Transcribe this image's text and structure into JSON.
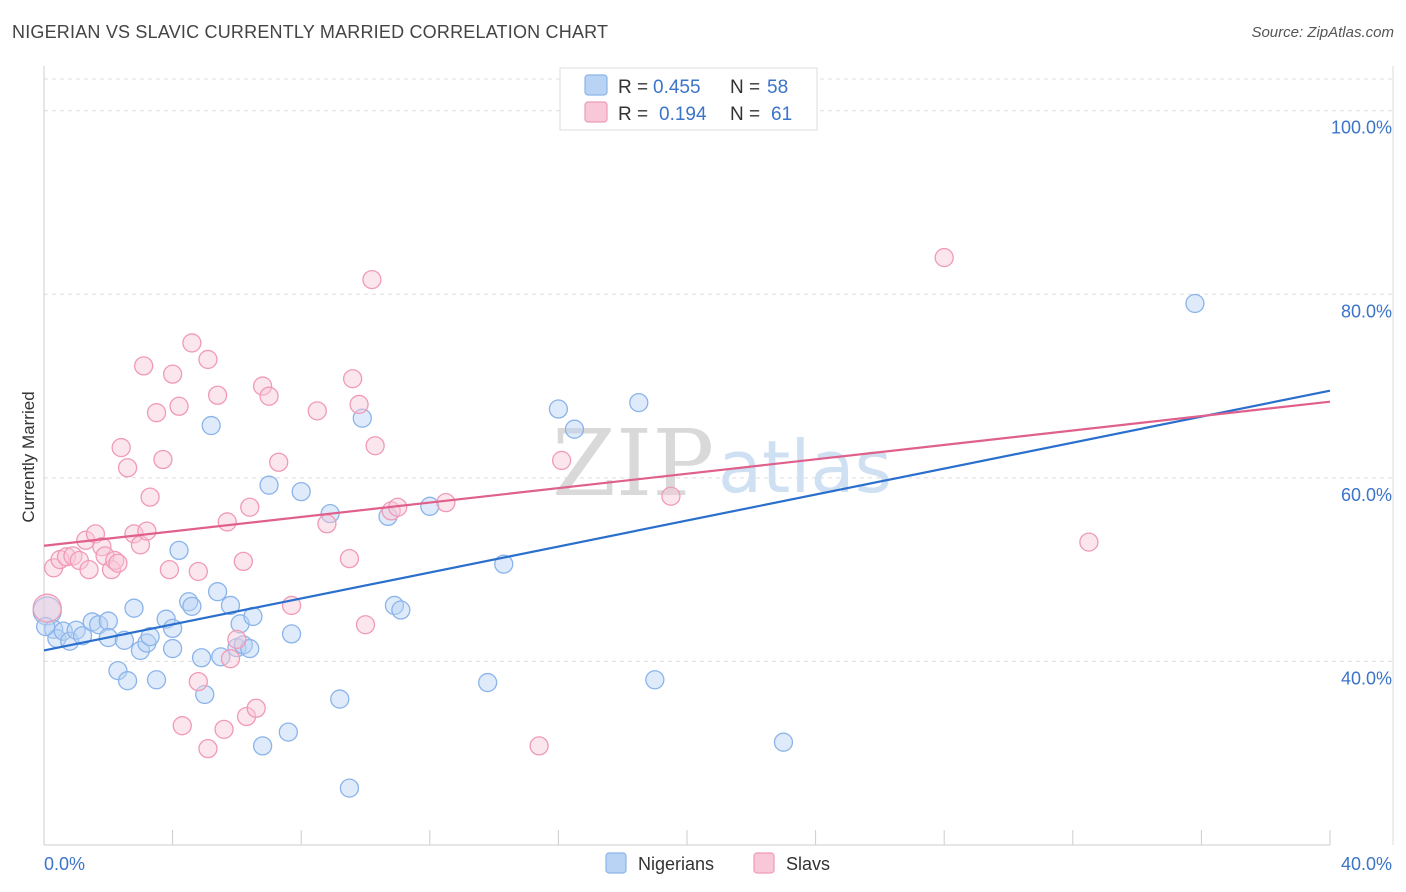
{
  "chart_data": {
    "type": "scatter",
    "title": "NIGERIAN VS SLAVIC CURRENTLY MARRIED CORRELATION CHART",
    "source": "Source: ZipAtlas.com",
    "ylabel": "Currently Married",
    "xlabel": "",
    "xlim": [
      0,
      40
    ],
    "ylim": [
      20,
      104
    ],
    "x_tick_labels": [
      "0.0%",
      "40.0%"
    ],
    "y_ticks": [
      40,
      60,
      80,
      100
    ],
    "y_tick_labels": [
      "40.0%",
      "60.0%",
      "80.0%",
      "100.0%"
    ],
    "watermark": {
      "part1": "ZIP",
      "part2": "atlas"
    },
    "legend": {
      "r_label": "R =",
      "n_label": "N =",
      "entries": [
        {
          "name": "Nigerians",
          "r": "0.455",
          "n": "58",
          "color": "#8ab4ea",
          "fill": "#b9d3f5"
        },
        {
          "name": "Slavs",
          "r": "0.194",
          "n": "61",
          "color": "#f09ab6",
          "fill": "#f8c8d8"
        }
      ]
    },
    "series": [
      {
        "name": "Nigerians",
        "color": "#8ab4ea",
        "line_color": "#2a6fcc",
        "trend": {
          "x0": 0,
          "y0": 41.2,
          "x1": 40,
          "y1": 69.5
        },
        "points": [
          [
            0.1,
            45.5
          ],
          [
            0.3,
            43.5
          ],
          [
            0.4,
            42.5
          ],
          [
            0.6,
            43.3
          ],
          [
            0.8,
            42.2
          ],
          [
            1.0,
            43.4
          ],
          [
            1.2,
            42.8
          ],
          [
            1.5,
            44.3
          ],
          [
            1.7,
            44.0
          ],
          [
            2.0,
            44.4
          ],
          [
            2.0,
            42.6
          ],
          [
            2.3,
            39.0
          ],
          [
            2.5,
            42.3
          ],
          [
            2.6,
            37.9
          ],
          [
            2.8,
            45.8
          ],
          [
            3.0,
            41.2
          ],
          [
            3.2,
            42.0
          ],
          [
            3.3,
            42.7
          ],
          [
            3.5,
            38.0
          ],
          [
            3.8,
            44.6
          ],
          [
            4.0,
            43.6
          ],
          [
            4.0,
            41.4
          ],
          [
            4.2,
            52.1
          ],
          [
            4.5,
            46.5
          ],
          [
            4.6,
            46.0
          ],
          [
            4.9,
            40.4
          ],
          [
            5.0,
            36.4
          ],
          [
            5.2,
            65.7
          ],
          [
            5.4,
            47.6
          ],
          [
            5.5,
            40.5
          ],
          [
            5.8,
            46.1
          ],
          [
            6.0,
            41.5
          ],
          [
            6.1,
            44.1
          ],
          [
            6.2,
            41.8
          ],
          [
            6.4,
            41.4
          ],
          [
            6.5,
            44.9
          ],
          [
            6.8,
            30.8
          ],
          [
            7.0,
            59.2
          ],
          [
            7.6,
            32.3
          ],
          [
            7.7,
            43.0
          ],
          [
            8.0,
            58.5
          ],
          [
            8.9,
            56.1
          ],
          [
            9.2,
            35.9
          ],
          [
            9.5,
            26.2
          ],
          [
            9.9,
            66.5
          ],
          [
            10.7,
            55.8
          ],
          [
            10.9,
            46.1
          ],
          [
            11.1,
            45.6
          ],
          [
            12.0,
            56.9
          ],
          [
            13.8,
            37.7
          ],
          [
            14.3,
            50.6
          ],
          [
            16.0,
            67.5
          ],
          [
            16.5,
            65.3
          ],
          [
            18.5,
            68.2
          ],
          [
            19.0,
            38.0
          ],
          [
            23.0,
            31.2
          ],
          [
            35.8,
            79.0
          ],
          [
            0.05,
            43.8
          ]
        ]
      },
      {
        "name": "Slavs",
        "color": "#f09ab6",
        "line_color": "#e0608c",
        "trend": {
          "x0": 0,
          "y0": 52.6,
          "x1": 40,
          "y1": 68.3
        },
        "points": [
          [
            0.1,
            45.8
          ],
          [
            0.3,
            50.2
          ],
          [
            0.5,
            51.1
          ],
          [
            0.7,
            51.4
          ],
          [
            0.9,
            51.5
          ],
          [
            1.1,
            51.0
          ],
          [
            1.3,
            53.2
          ],
          [
            1.4,
            50.0
          ],
          [
            1.6,
            53.9
          ],
          [
            1.8,
            52.5
          ],
          [
            1.9,
            51.5
          ],
          [
            2.1,
            50.0
          ],
          [
            2.2,
            51.0
          ],
          [
            2.3,
            50.7
          ],
          [
            2.4,
            63.3
          ],
          [
            2.6,
            61.1
          ],
          [
            2.8,
            53.9
          ],
          [
            3.0,
            52.7
          ],
          [
            3.1,
            72.2
          ],
          [
            3.2,
            54.2
          ],
          [
            3.3,
            57.9
          ],
          [
            3.5,
            67.1
          ],
          [
            3.7,
            62.0
          ],
          [
            3.9,
            50.0
          ],
          [
            4.0,
            71.3
          ],
          [
            4.2,
            67.8
          ],
          [
            4.3,
            33.0
          ],
          [
            4.6,
            74.7
          ],
          [
            4.8,
            37.8
          ],
          [
            4.8,
            49.8
          ],
          [
            5.1,
            72.9
          ],
          [
            5.1,
            30.5
          ],
          [
            5.4,
            69.0
          ],
          [
            5.6,
            32.6
          ],
          [
            5.7,
            55.2
          ],
          [
            5.8,
            40.3
          ],
          [
            6.0,
            42.4
          ],
          [
            6.2,
            50.9
          ],
          [
            6.3,
            34.0
          ],
          [
            6.4,
            56.8
          ],
          [
            6.6,
            34.9
          ],
          [
            6.8,
            70.0
          ],
          [
            7.0,
            68.9
          ],
          [
            7.3,
            61.7
          ],
          [
            7.7,
            46.1
          ],
          [
            8.5,
            67.3
          ],
          [
            8.8,
            55.0
          ],
          [
            9.5,
            51.2
          ],
          [
            9.6,
            70.8
          ],
          [
            9.8,
            68.0
          ],
          [
            10.0,
            44.0
          ],
          [
            10.2,
            81.6
          ],
          [
            10.3,
            63.5
          ],
          [
            10.8,
            56.4
          ],
          [
            11.0,
            56.8
          ],
          [
            12.5,
            57.3
          ],
          [
            15.4,
            30.8
          ],
          [
            16.1,
            61.9
          ],
          [
            19.5,
            58.0
          ],
          [
            28.0,
            84.0
          ],
          [
            32.5,
            53.0
          ]
        ]
      }
    ]
  },
  "bottom_legend": [
    "Nigerians",
    "Slavs"
  ]
}
